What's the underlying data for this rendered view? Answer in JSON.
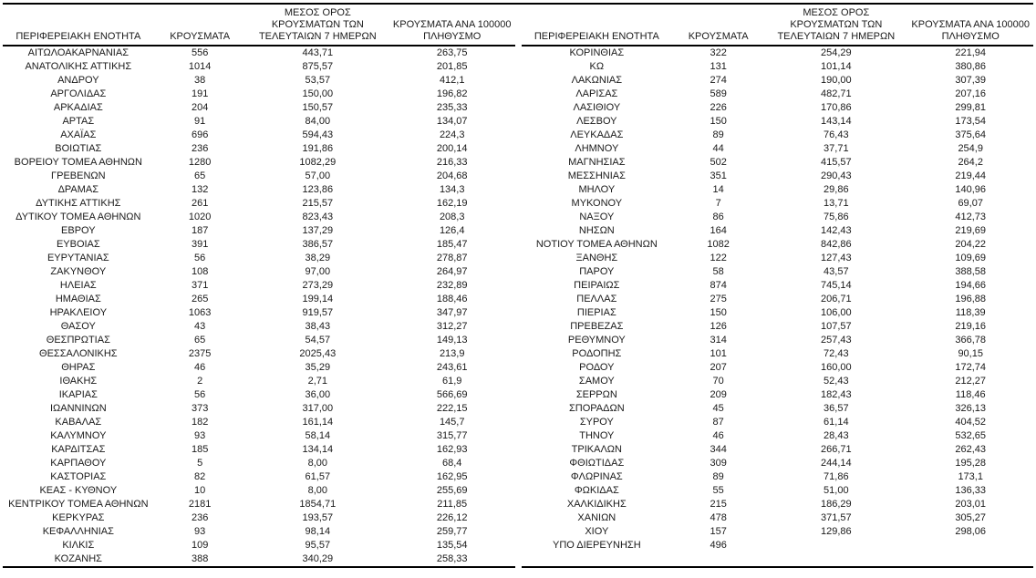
{
  "page": {
    "background": "#ffffff",
    "text_color": "#1a1a1a",
    "rule_color": "#000000"
  },
  "tables": [
    {
      "headers": {
        "region": "ΠΕΡΙΦΕΡΕΙΑΚΗ ΕΝΟΤΗΤΑ",
        "cases": "ΚΡΟΥΣΜΑΤΑ",
        "avg7": "ΜΕΣΟΣ ΟΡΟΣ\nΚΡΟΥΣΜΑΤΩΝ ΤΩΝ\nΤΕΛΕΥΤΑΙΩΝ 7 ΗΜΕΡΩΝ",
        "per100k": "ΚΡΟΥΣΜΑΤΑ ΑΝΑ 100000\nΠΛΗΘΥΣΜΟ"
      },
      "rows": [
        [
          "ΑΙΤΩΛΟΑΚΑΡΝΑΝΙΑΣ",
          "556",
          "443,71",
          "263,75"
        ],
        [
          "ΑΝΑΤΟΛΙΚΗΣ ΑΤΤΙΚΗΣ",
          "1014",
          "875,57",
          "201,85"
        ],
        [
          "ΑΝΔΡΟΥ",
          "38",
          "53,57",
          "412,1"
        ],
        [
          "ΑΡΓΟΛΙΔΑΣ",
          "191",
          "150,00",
          "196,82"
        ],
        [
          "ΑΡΚΑΔΙΑΣ",
          "204",
          "150,57",
          "235,33"
        ],
        [
          "ΑΡΤΑΣ",
          "91",
          "84,00",
          "134,07"
        ],
        [
          "ΑΧΑΪΑΣ",
          "696",
          "594,43",
          "224,3"
        ],
        [
          "ΒΟΙΩΤΙΑΣ",
          "236",
          "191,86",
          "200,14"
        ],
        [
          "ΒΟΡΕΙΟΥ ΤΟΜΕΑ ΑΘΗΝΩΝ",
          "1280",
          "1082,29",
          "216,33"
        ],
        [
          "ΓΡΕΒΕΝΩΝ",
          "65",
          "57,00",
          "204,68"
        ],
        [
          "ΔΡΑΜΑΣ",
          "132",
          "123,86",
          "134,3"
        ],
        [
          "ΔΥΤΙΚΗΣ ΑΤΤΙΚΗΣ",
          "261",
          "215,57",
          "162,19"
        ],
        [
          "ΔΥΤΙΚΟΥ ΤΟΜΕΑ ΑΘΗΝΩΝ",
          "1020",
          "823,43",
          "208,3"
        ],
        [
          "ΕΒΡΟΥ",
          "187",
          "137,29",
          "126,4"
        ],
        [
          "ΕΥΒΟΙΑΣ",
          "391",
          "386,57",
          "185,47"
        ],
        [
          "ΕΥΡΥΤΑΝΙΑΣ",
          "56",
          "38,29",
          "278,87"
        ],
        [
          "ΖΑΚΥΝΘΟΥ",
          "108",
          "97,00",
          "264,97"
        ],
        [
          "ΗΛΕΙΑΣ",
          "371",
          "273,29",
          "232,89"
        ],
        [
          "ΗΜΑΘΙΑΣ",
          "265",
          "199,14",
          "188,46"
        ],
        [
          "ΗΡΑΚΛΕΙΟΥ",
          "1063",
          "919,57",
          "347,97"
        ],
        [
          "ΘΑΣΟΥ",
          "43",
          "38,43",
          "312,27"
        ],
        [
          "ΘΕΣΠΡΩΤΙΑΣ",
          "65",
          "54,57",
          "149,13"
        ],
        [
          "ΘΕΣΣΑΛΟΝΙΚΗΣ",
          "2375",
          "2025,43",
          "213,9"
        ],
        [
          "ΘΗΡΑΣ",
          "46",
          "35,29",
          "243,61"
        ],
        [
          "ΙΘΑΚΗΣ",
          "2",
          "2,71",
          "61,9"
        ],
        [
          "ΙΚΑΡΙΑΣ",
          "56",
          "36,00",
          "566,69"
        ],
        [
          "ΙΩΑΝΝΙΝΩΝ",
          "373",
          "317,00",
          "222,15"
        ],
        [
          "ΚΑΒΑΛΑΣ",
          "182",
          "161,14",
          "145,7"
        ],
        [
          "ΚΑΛΥΜΝΟΥ",
          "93",
          "58,14",
          "315,77"
        ],
        [
          "ΚΑΡΔΙΤΣΑΣ",
          "185",
          "134,14",
          "162,93"
        ],
        [
          "ΚΑΡΠΑΘΟΥ",
          "5",
          "8,00",
          "68,4"
        ],
        [
          "ΚΑΣΤΟΡΙΑΣ",
          "82",
          "61,57",
          "162,95"
        ],
        [
          "ΚΕΑΣ - ΚΥΘΝΟΥ",
          "10",
          "8,00",
          "255,69"
        ],
        [
          "ΚΕΝΤΡΙΚΟΥ ΤΟΜΕΑ ΑΘΗΝΩΝ",
          "2181",
          "1854,71",
          "211,85"
        ],
        [
          "ΚΕΡΚΥΡΑΣ",
          "236",
          "193,57",
          "226,12"
        ],
        [
          "ΚΕΦΑΛΛΗΝΙΑΣ",
          "93",
          "98,14",
          "259,77"
        ],
        [
          "ΚΙΛΚΙΣ",
          "109",
          "95,57",
          "135,54"
        ],
        [
          "ΚΟΖΑΝΗΣ",
          "388",
          "340,29",
          "258,33"
        ]
      ]
    },
    {
      "headers": {
        "region": "ΠΕΡΙΦΕΡΕΙΑΚΗ ΕΝΟΤΗΤΑ",
        "cases": "ΚΡΟΥΣΜΑΤΑ",
        "avg7": "ΜΕΣΟΣ ΟΡΟΣ\nΚΡΟΥΣΜΑΤΩΝ ΤΩΝ\nΤΕΛΕΥΤΑΙΩΝ 7 ΗΜΕΡΩΝ",
        "per100k": "ΚΡΟΥΣΜΑΤΑ ΑΝΑ 100000\nΠΛΗΘΥΣΜΟ"
      },
      "rows": [
        [
          "ΚΟΡΙΝΘΙΑΣ",
          "322",
          "254,29",
          "221,94"
        ],
        [
          "ΚΩ",
          "131",
          "101,14",
          "380,86"
        ],
        [
          "ΛΑΚΩΝΙΑΣ",
          "274",
          "190,00",
          "307,39"
        ],
        [
          "ΛΑΡΙΣΑΣ",
          "589",
          "482,71",
          "207,16"
        ],
        [
          "ΛΑΣΙΘΙΟΥ",
          "226",
          "170,86",
          "299,81"
        ],
        [
          "ΛΕΣΒΟΥ",
          "150",
          "143,14",
          "173,54"
        ],
        [
          "ΛΕΥΚΑΔΑΣ",
          "89",
          "76,43",
          "375,64"
        ],
        [
          "ΛΗΜΝΟΥ",
          "44",
          "37,71",
          "254,9"
        ],
        [
          "ΜΑΓΝΗΣΙΑΣ",
          "502",
          "415,57",
          "264,2"
        ],
        [
          "ΜΕΣΣΗΝΙΑΣ",
          "351",
          "290,43",
          "219,44"
        ],
        [
          "ΜΗΛΟΥ",
          "14",
          "29,86",
          "140,96"
        ],
        [
          "ΜΥΚΟΝΟΥ",
          "7",
          "13,71",
          "69,07"
        ],
        [
          "ΝΑΞΟΥ",
          "86",
          "75,86",
          "412,73"
        ],
        [
          "ΝΗΣΩΝ",
          "164",
          "142,43",
          "219,69"
        ],
        [
          "ΝΟΤΙΟΥ ΤΟΜΕΑ ΑΘΗΝΩΝ",
          "1082",
          "842,86",
          "204,22"
        ],
        [
          "ΞΑΝΘΗΣ",
          "122",
          "127,43",
          "109,69"
        ],
        [
          "ΠΑΡΟΥ",
          "58",
          "43,57",
          "388,58"
        ],
        [
          "ΠΕΙΡΑΙΩΣ",
          "874",
          "745,14",
          "194,66"
        ],
        [
          "ΠΕΛΛΑΣ",
          "275",
          "206,71",
          "196,88"
        ],
        [
          "ΠΙΕΡΙΑΣ",
          "150",
          "106,00",
          "118,39"
        ],
        [
          "ΠΡΕΒΕΖΑΣ",
          "126",
          "107,57",
          "219,16"
        ],
        [
          "ΡΕΘΥΜΝΟΥ",
          "314",
          "257,43",
          "366,78"
        ],
        [
          "ΡΟΔΟΠΗΣ",
          "101",
          "72,43",
          "90,15"
        ],
        [
          "ΡΟΔΟΥ",
          "207",
          "160,00",
          "172,74"
        ],
        [
          "ΣΑΜΟΥ",
          "70",
          "52,43",
          "212,27"
        ],
        [
          "ΣΕΡΡΩΝ",
          "209",
          "182,43",
          "118,46"
        ],
        [
          "ΣΠΟΡΑΔΩΝ",
          "45",
          "36,57",
          "326,13"
        ],
        [
          "ΣΥΡΟΥ",
          "87",
          "61,14",
          "404,52"
        ],
        [
          "ΤΗΝΟΥ",
          "46",
          "28,43",
          "532,65"
        ],
        [
          "ΤΡΙΚΑΛΩΝ",
          "344",
          "266,71",
          "262,43"
        ],
        [
          "ΦΘΙΩΤΙΔΑΣ",
          "309",
          "244,14",
          "195,28"
        ],
        [
          "ΦΛΩΡΙΝΑΣ",
          "89",
          "71,86",
          "173,1"
        ],
        [
          "ΦΩΚΙΔΑΣ",
          "55",
          "51,00",
          "136,33"
        ],
        [
          "ΧΑΛΚΙΔΙΚΗΣ",
          "215",
          "186,29",
          "203,01"
        ],
        [
          "ΧΑΝΙΩΝ",
          "478",
          "371,57",
          "305,27"
        ],
        [
          "ΧΙΟΥ",
          "157",
          "129,86",
          "298,06"
        ],
        [
          "ΥΠΟ ΔΙΕΡΕΥΝΗΣΗ",
          "496",
          "",
          ""
        ]
      ]
    }
  ]
}
